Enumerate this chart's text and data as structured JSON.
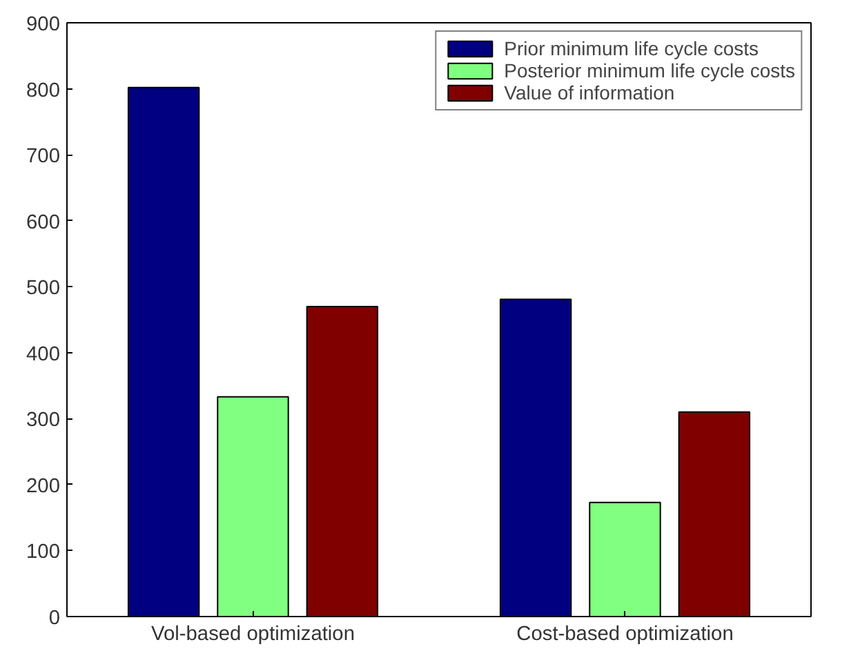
{
  "chart_data": {
    "type": "bar",
    "categories": [
      "Vol-based optimization",
      "Cost-based optimization"
    ],
    "series": [
      {
        "name": "Prior minimum life cycle costs",
        "color": "#000080",
        "values": [
          802,
          481
        ]
      },
      {
        "name": "Posterior minimum life cycle costs",
        "color": "#80ff80",
        "values": [
          333,
          173
        ]
      },
      {
        "name": "Value of information",
        "color": "#800000",
        "values": [
          470,
          310
        ]
      }
    ],
    "ylim": [
      0,
      900
    ],
    "yticks": [
      0,
      100,
      200,
      300,
      400,
      500,
      600,
      700,
      800,
      900
    ],
    "grid": false,
    "legend": "top right"
  }
}
